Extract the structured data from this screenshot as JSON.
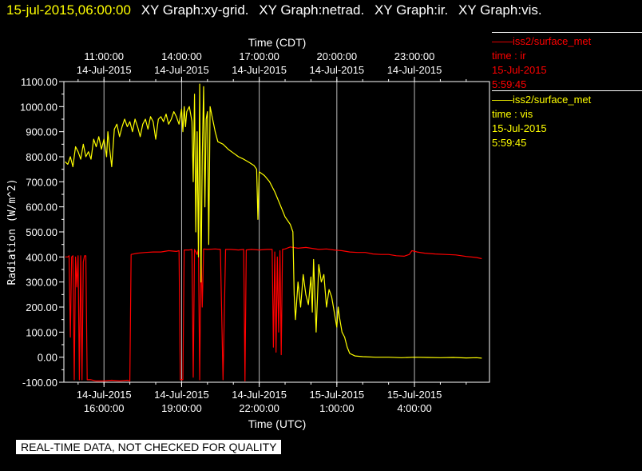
{
  "header": {
    "timestamp": "15-jul-2015,06:00:00",
    "graphs": [
      "XY Graph:xy-grid.",
      "XY Graph:netrad.",
      "XY Graph:ir.",
      "XY Graph:vis."
    ]
  },
  "legend": [
    {
      "line1": "——iss2/surface_met",
      "line2": "time : ir",
      "line3": "15-Jul-2015",
      "line4": "5:59:45",
      "color": "#ff0000"
    },
    {
      "line1": "——iss2/surface_met",
      "line2": "time : vis",
      "line3": "15-Jul-2015",
      "line4": "5:59:45",
      "color": "#ffff00"
    }
  ],
  "banner": "REAL-TIME DATA, NOT CHECKED FOR QUALITY",
  "colors": {
    "background": "#000000",
    "axes": "#ffffff",
    "ir": "#ff0000",
    "vis": "#ffff00"
  },
  "chart_data": {
    "type": "line",
    "ylabel": "Radiation (W/m^2)",
    "xlabel_bottom": "Time (UTC)",
    "xlabel_top": "Time (CDT)",
    "ylim": [
      -100,
      1100
    ],
    "yticks": [
      "1100.00",
      "1000.00",
      "900.00",
      "800.00",
      "700.00",
      "600.00",
      "500.00",
      "400.00",
      "300.00",
      "200.00",
      "100.00",
      "0.00",
      "-100.00"
    ],
    "xlim_utc_hours": [
      14.45,
      30.9
    ],
    "grid": true,
    "bottom_ticks": [
      {
        "t": 16,
        "date": "14-Jul-2015",
        "time": "16:00:00"
      },
      {
        "t": 19,
        "date": "14-Jul-2015",
        "time": "19:00:00"
      },
      {
        "t": 22,
        "date": "14-Jul-2015",
        "time": "22:00:00"
      },
      {
        "t": 25,
        "date": "15-Jul-2015",
        "time": "1:00:00"
      },
      {
        "t": 28,
        "date": "15-Jul-2015",
        "time": "4:00:00"
      }
    ],
    "top_ticks": [
      {
        "t": 16,
        "time": "11:00:00",
        "date": "14-Jul-2015"
      },
      {
        "t": 19,
        "time": "14:00:00",
        "date": "14-Jul-2015"
      },
      {
        "t": 22,
        "time": "17:00:00",
        "date": "14-Jul-2015"
      },
      {
        "t": 25,
        "time": "20:00:00",
        "date": "14-Jul-2015"
      },
      {
        "t": 28,
        "time": "23:00:00",
        "date": "14-Jul-2015"
      }
    ],
    "series": [
      {
        "name": "ir",
        "color": "#ff0000",
        "points": [
          [
            14.5,
            400
          ],
          [
            14.6,
            400
          ],
          [
            14.65,
            405
          ],
          [
            14.7,
            80
          ],
          [
            14.75,
            400
          ],
          [
            14.8,
            405
          ],
          [
            14.85,
            -90
          ],
          [
            14.9,
            400
          ],
          [
            14.95,
            280
          ],
          [
            15.0,
            405
          ],
          [
            15.05,
            -90
          ],
          [
            15.1,
            405
          ],
          [
            15.15,
            -90
          ],
          [
            15.2,
            380
          ],
          [
            15.25,
            405
          ],
          [
            15.3,
            405
          ],
          [
            15.35,
            -90
          ],
          [
            15.5,
            -90
          ],
          [
            15.7,
            -95
          ],
          [
            16.0,
            -95
          ],
          [
            16.3,
            -92
          ],
          [
            16.6,
            -95
          ],
          [
            16.9,
            -92
          ],
          [
            17.0,
            -95
          ],
          [
            17.05,
            410
          ],
          [
            17.3,
            415
          ],
          [
            17.6,
            418
          ],
          [
            17.9,
            420
          ],
          [
            18.2,
            420
          ],
          [
            18.5,
            425
          ],
          [
            18.8,
            422
          ],
          [
            18.9,
            425
          ],
          [
            18.95,
            -90
          ],
          [
            19.05,
            -90
          ],
          [
            19.1,
            428
          ],
          [
            19.3,
            428
          ],
          [
            19.4,
            430
          ],
          [
            19.45,
            -80
          ],
          [
            19.5,
            430
          ],
          [
            19.6,
            410
          ],
          [
            19.65,
            432
          ],
          [
            19.7,
            -90
          ],
          [
            19.75,
            430
          ],
          [
            19.8,
            200
          ],
          [
            19.85,
            432
          ],
          [
            20.0,
            430
          ],
          [
            20.3,
            432
          ],
          [
            20.5,
            430
          ],
          [
            20.6,
            -90
          ],
          [
            20.7,
            430
          ],
          [
            20.9,
            430
          ],
          [
            21.2,
            428
          ],
          [
            21.4,
            430
          ],
          [
            21.45,
            -95
          ],
          [
            21.5,
            428
          ],
          [
            21.7,
            430
          ],
          [
            22.0,
            428
          ],
          [
            22.3,
            430
          ],
          [
            22.5,
            430
          ],
          [
            22.55,
            40
          ],
          [
            22.6,
            420
          ],
          [
            22.65,
            20
          ],
          [
            22.7,
            400
          ],
          [
            22.75,
            100
          ],
          [
            22.8,
            425
          ],
          [
            22.85,
            10
          ],
          [
            22.9,
            430
          ],
          [
            23.0,
            432
          ],
          [
            23.2,
            440
          ],
          [
            23.5,
            435
          ],
          [
            23.8,
            438
          ],
          [
            24.0,
            435
          ],
          [
            24.3,
            430
          ],
          [
            24.6,
            432
          ],
          [
            24.9,
            428
          ],
          [
            25.2,
            425
          ],
          [
            25.5,
            420
          ],
          [
            25.8,
            418
          ],
          [
            26.1,
            418
          ],
          [
            26.4,
            412
          ],
          [
            26.7,
            410
          ],
          [
            27.0,
            410
          ],
          [
            27.3,
            405
          ],
          [
            27.6,
            403
          ],
          [
            27.8,
            410
          ],
          [
            27.9,
            425
          ],
          [
            28.1,
            420
          ],
          [
            28.4,
            415
          ],
          [
            28.8,
            412
          ],
          [
            29.2,
            410
          ],
          [
            29.6,
            408
          ],
          [
            30.0,
            402
          ],
          [
            30.4,
            398
          ],
          [
            30.6,
            393
          ]
        ]
      },
      {
        "name": "vis",
        "color": "#ffff00",
        "points": [
          [
            14.5,
            780
          ],
          [
            14.6,
            770
          ],
          [
            14.7,
            800
          ],
          [
            14.8,
            760
          ],
          [
            14.9,
            840
          ],
          [
            15.0,
            820
          ],
          [
            15.1,
            790
          ],
          [
            15.2,
            850
          ],
          [
            15.3,
            800
          ],
          [
            15.4,
            820
          ],
          [
            15.5,
            790
          ],
          [
            15.6,
            870
          ],
          [
            15.7,
            840
          ],
          [
            15.8,
            880
          ],
          [
            15.9,
            830
          ],
          [
            16.0,
            870
          ],
          [
            16.1,
            800
          ],
          [
            16.15,
            900
          ],
          [
            16.2,
            850
          ],
          [
            16.3,
            760
          ],
          [
            16.4,
            910
          ],
          [
            16.5,
            930
          ],
          [
            16.6,
            880
          ],
          [
            16.7,
            920
          ],
          [
            16.8,
            950
          ],
          [
            16.9,
            920
          ],
          [
            17.0,
            940
          ],
          [
            17.1,
            900
          ],
          [
            17.2,
            950
          ],
          [
            17.3,
            920
          ],
          [
            17.4,
            880
          ],
          [
            17.5,
            930
          ],
          [
            17.6,
            950
          ],
          [
            17.7,
            910
          ],
          [
            17.8,
            960
          ],
          [
            17.9,
            940
          ],
          [
            18.0,
            870
          ],
          [
            18.1,
            950
          ],
          [
            18.2,
            960
          ],
          [
            18.3,
            940
          ],
          [
            18.4,
            970
          ],
          [
            18.5,
            930
          ],
          [
            18.6,
            950
          ],
          [
            18.7,
            980
          ],
          [
            18.8,
            960
          ],
          [
            18.9,
            930
          ],
          [
            19.0,
            990
          ],
          [
            19.05,
            900
          ],
          [
            19.1,
            1000
          ],
          [
            19.15,
            920
          ],
          [
            19.2,
            980
          ],
          [
            19.3,
            1000
          ],
          [
            19.4,
            940
          ],
          [
            19.45,
            700
          ],
          [
            19.5,
            1050
          ],
          [
            19.55,
            500
          ],
          [
            19.6,
            900
          ],
          [
            19.65,
            400
          ],
          [
            19.7,
            1090
          ],
          [
            19.75,
            300
          ],
          [
            19.8,
            800
          ],
          [
            19.85,
            1080
          ],
          [
            19.9,
            600
          ],
          [
            19.95,
            950
          ],
          [
            20.0,
            980
          ],
          [
            20.05,
            450
          ],
          [
            20.1,
            1000
          ],
          [
            20.2,
            950
          ],
          [
            20.3,
            900
          ],
          [
            20.4,
            860
          ],
          [
            20.6,
            850
          ],
          [
            20.8,
            830
          ],
          [
            21.0,
            815
          ],
          [
            21.2,
            800
          ],
          [
            21.4,
            790
          ],
          [
            21.6,
            778
          ],
          [
            21.8,
            765
          ],
          [
            21.9,
            750
          ],
          [
            21.95,
            550
          ],
          [
            22.0,
            740
          ],
          [
            22.2,
            725
          ],
          [
            22.4,
            700
          ],
          [
            22.6,
            660
          ],
          [
            22.8,
            610
          ],
          [
            23.0,
            560
          ],
          [
            23.2,
            530
          ],
          [
            23.3,
            500
          ],
          [
            23.35,
            250
          ],
          [
            23.4,
            150
          ],
          [
            23.5,
            300
          ],
          [
            23.6,
            200
          ],
          [
            23.7,
            330
          ],
          [
            23.8,
            250
          ],
          [
            23.9,
            210
          ],
          [
            24.0,
            320
          ],
          [
            24.05,
            180
          ],
          [
            24.1,
            390
          ],
          [
            24.2,
            100
          ],
          [
            24.3,
            370
          ],
          [
            24.4,
            300
          ],
          [
            24.5,
            330
          ],
          [
            24.6,
            200
          ],
          [
            24.7,
            270
          ],
          [
            24.8,
            240
          ],
          [
            24.9,
            180
          ],
          [
            25.0,
            120
          ],
          [
            25.05,
            200
          ],
          [
            25.1,
            160
          ],
          [
            25.2,
            100
          ],
          [
            25.3,
            80
          ],
          [
            25.4,
            40
          ],
          [
            25.5,
            15
          ],
          [
            25.7,
            5
          ],
          [
            26.0,
            2
          ],
          [
            26.5,
            0
          ],
          [
            27.0,
            0
          ],
          [
            27.5,
            -2
          ],
          [
            28.0,
            0
          ],
          [
            28.5,
            -1
          ],
          [
            29.0,
            -2
          ],
          [
            29.5,
            -1
          ],
          [
            30.0,
            -3
          ],
          [
            30.4,
            -2
          ],
          [
            30.6,
            -4
          ]
        ]
      }
    ]
  }
}
